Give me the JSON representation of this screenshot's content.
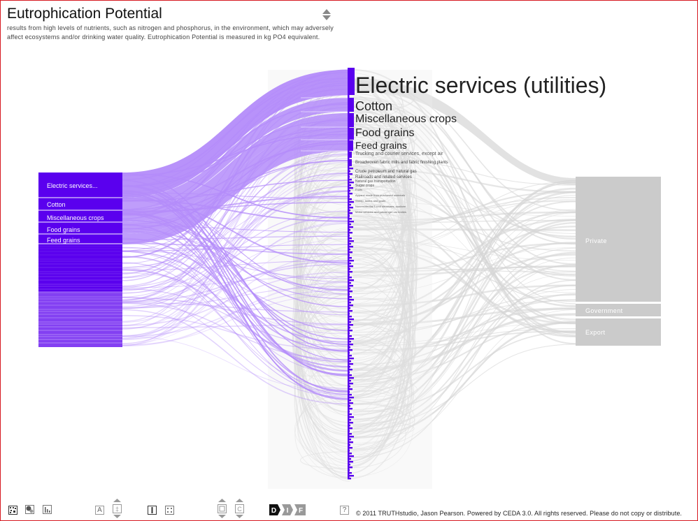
{
  "header": {
    "title": "Eutrophication Potential",
    "description": "results from high levels of nutrients, such as nitrogen and phosphorus, in the environment, which may adversely affect ecosystems and/or drinking water quality.  Eutrophication Potential is measured in kg PO4 equivalent."
  },
  "colors": {
    "source_block": "#5a00ee",
    "source_flow": "#b48cfa",
    "mid_bar": "#5a00ee",
    "grey_flow": "#d6d6d6",
    "sink_block": "#cbcbcb",
    "border": "#d71920"
  },
  "sources": {
    "labels": [
      "Electric services...",
      "Cotton",
      "Miscellaneous crops",
      "Food grains",
      "Feed grains"
    ]
  },
  "industries": {
    "labels": [
      "Electric services (utilities)",
      "Cotton",
      "Miscellaneous crops",
      "Food grains",
      "Feed grains",
      "Trucking and courier services, except air",
      "Broadwoven fabric mills and fabric finishing plants",
      "Crude petroleum and natural gas",
      "Railroads and related services",
      "Natural gas transportation",
      "Sugar crops",
      "Fruits",
      "Apparel made from purchased materials",
      "Sheep, lambs and goats",
      "Nonresidential 1-unit structures, nonfarm",
      "Motor vehicles and passenger car bodies"
    ]
  },
  "sinks": {
    "labels": [
      "Private",
      "Government",
      "Export"
    ]
  },
  "toolbar": {
    "icons": [
      "grid-view-icon",
      "bubble-view-icon",
      "bar-chart-icon",
      "text-size-icon",
      "text-size-stepper-icon",
      "single-column-icon",
      "multi-column-icon",
      "column-width-stepper-icon",
      "column-count-stepper-icon",
      "direct-mode-icon",
      "indirect-mode-icon",
      "full-mode-icon",
      "help-icon"
    ],
    "mode_letters": [
      "D",
      "I",
      "F"
    ],
    "text_letter": "A",
    "help_letter": "?"
  },
  "footer": {
    "copyright": "© 2011 TRUTHstudio, Jason Pearson. Powered by CEDA 3.0. All rights reserved. Please do not copy or distribute."
  }
}
